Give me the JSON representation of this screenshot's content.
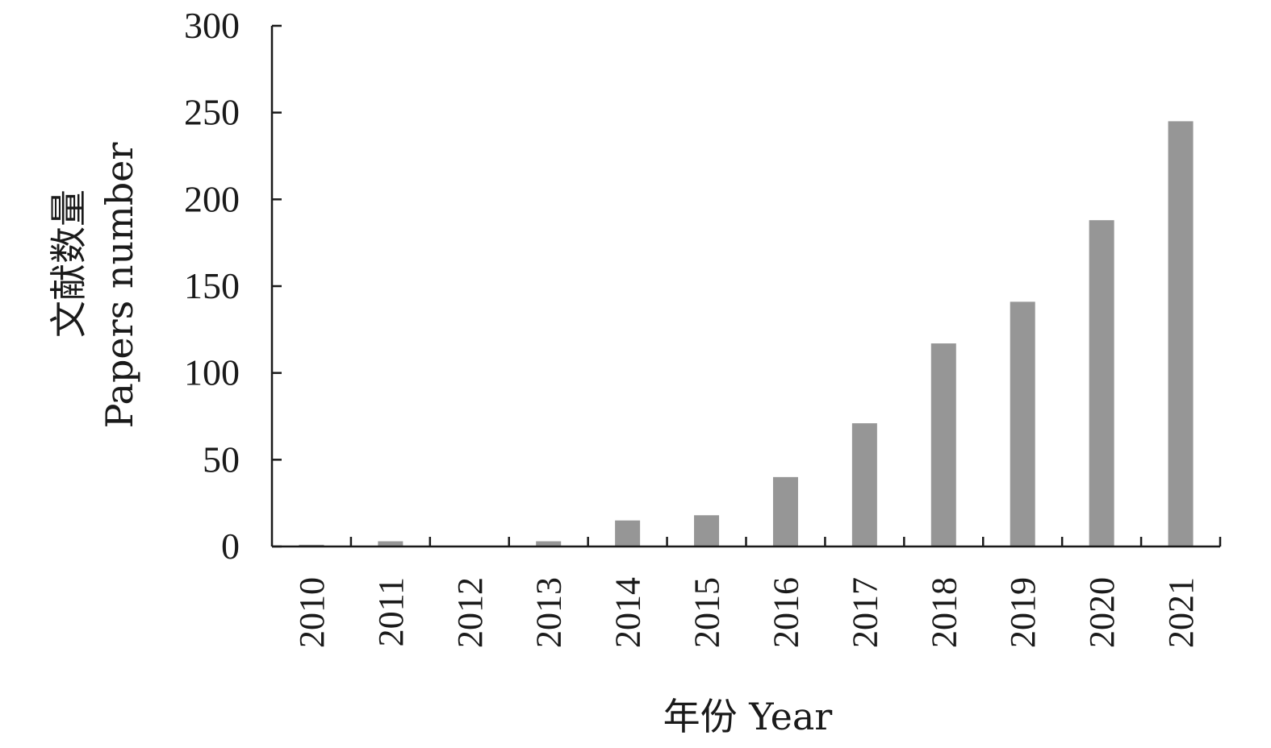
{
  "chart_data": {
    "type": "bar",
    "categories": [
      "2010",
      "2011",
      "2012",
      "2013",
      "2014",
      "2015",
      "2016",
      "2017",
      "2018",
      "2019",
      "2020",
      "2021"
    ],
    "series": [
      {
        "values": [
          1,
          3,
          0,
          3,
          15,
          18,
          40,
          71,
          117,
          141,
          188,
          245
        ]
      }
    ],
    "title": "",
    "xlabel": "年份 Year",
    "ylabel_cn": "文献数量",
    "ylabel_en": "Papers number",
    "ylim": [
      0,
      300
    ],
    "yticks": [
      "0",
      "50",
      "100",
      "150",
      "200",
      "250",
      "300"
    ],
    "grid": false,
    "legend": "none",
    "bar_color": "#969696",
    "axis_color": "#1a1a1a"
  }
}
